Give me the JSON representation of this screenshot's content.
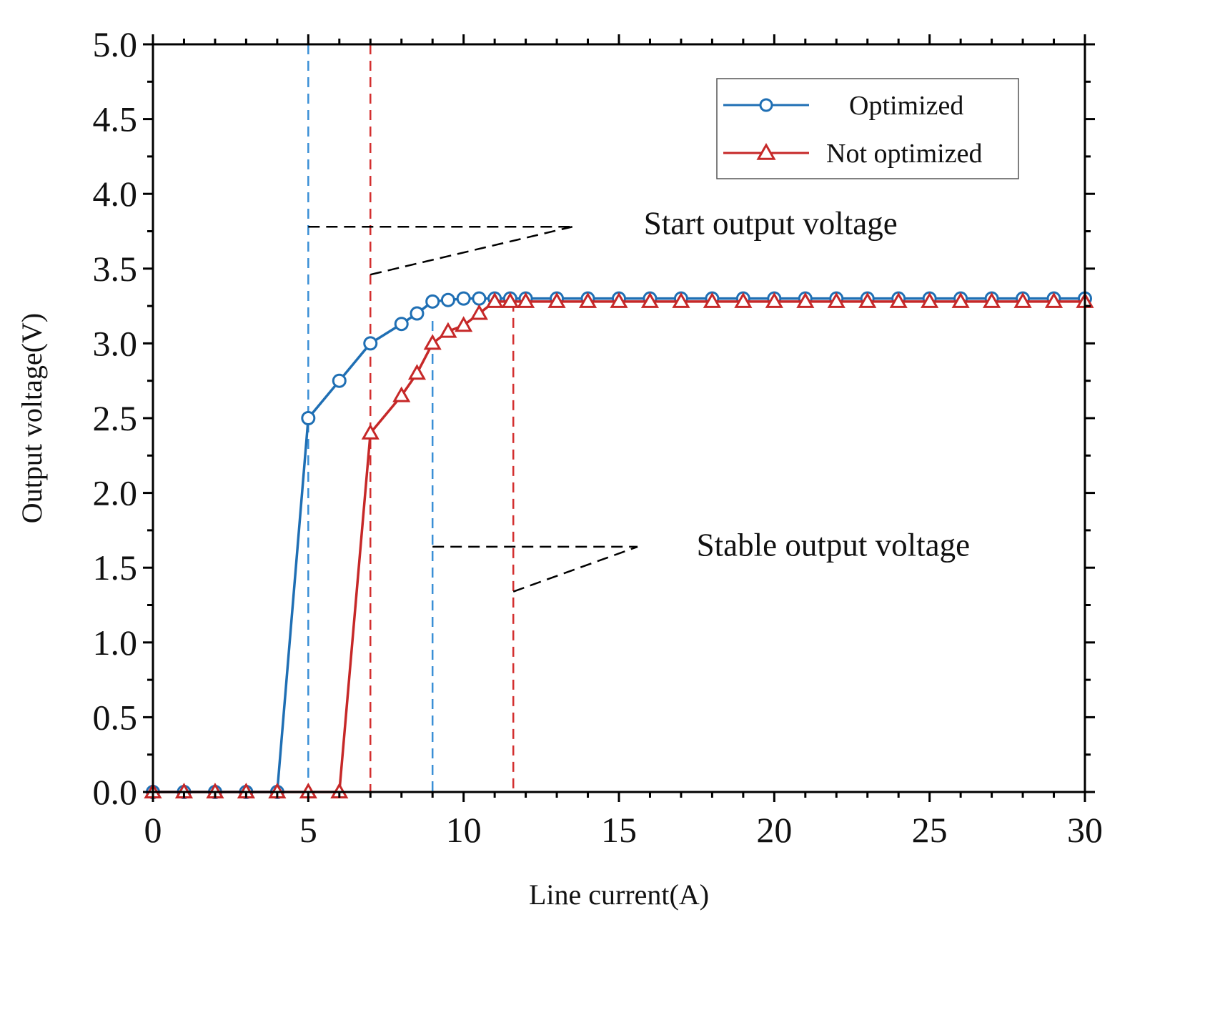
{
  "chart_data": {
    "type": "line",
    "title": "",
    "xlabel": "Line current(A)",
    "ylabel": "Output voltage(V)",
    "xlim": [
      0,
      30
    ],
    "ylim": [
      0,
      5
    ],
    "xticks": [
      0,
      5,
      10,
      15,
      20,
      25,
      30
    ],
    "yticks": [
      0.0,
      0.5,
      1.0,
      1.5,
      2.0,
      2.5,
      3.0,
      3.5,
      4.0,
      4.5,
      5.0
    ],
    "xtick_labels": [
      "0",
      "5",
      "10",
      "15",
      "20",
      "25",
      "30"
    ],
    "ytick_labels": [
      "0.0",
      "0.5",
      "1.0",
      "1.5",
      "2.0",
      "2.5",
      "3.0",
      "3.5",
      "4.0",
      "4.5",
      "5.0"
    ],
    "grid": false,
    "legend": "top-right",
    "series": [
      {
        "name": "Optimized",
        "color": "#1f6fb4",
        "marker": "circle",
        "x": [
          0,
          1,
          2,
          3,
          4,
          5,
          6,
          7,
          8,
          8.5,
          9,
          9.5,
          10,
          10.5,
          11,
          11.5,
          12,
          13,
          14,
          15,
          16,
          17,
          18,
          19,
          20,
          21,
          22,
          23,
          24,
          25,
          26,
          27,
          28,
          29,
          30
        ],
        "y": [
          0,
          0,
          0,
          0,
          0,
          2.5,
          2.75,
          3.0,
          3.13,
          3.2,
          3.28,
          3.29,
          3.3,
          3.3,
          3.3,
          3.3,
          3.3,
          3.3,
          3.3,
          3.3,
          3.3,
          3.3,
          3.3,
          3.3,
          3.3,
          3.3,
          3.3,
          3.3,
          3.3,
          3.3,
          3.3,
          3.3,
          3.3,
          3.3,
          3.3
        ]
      },
      {
        "name": "Not optimized",
        "color": "#c62828",
        "marker": "triangle",
        "x": [
          0,
          1,
          2,
          3,
          4,
          5,
          6,
          7,
          8,
          8.5,
          9,
          9.5,
          10,
          10.5,
          11,
          11.5,
          12,
          13,
          14,
          15,
          16,
          17,
          18,
          19,
          20,
          21,
          22,
          23,
          24,
          25,
          26,
          27,
          28,
          29,
          30
        ],
        "y": [
          0,
          0,
          0,
          0,
          0,
          0,
          0,
          2.4,
          2.65,
          2.8,
          3.0,
          3.08,
          3.12,
          3.2,
          3.28,
          3.28,
          3.28,
          3.28,
          3.28,
          3.28,
          3.28,
          3.28,
          3.28,
          3.28,
          3.28,
          3.28,
          3.28,
          3.28,
          3.28,
          3.28,
          3.28,
          3.28,
          3.28,
          3.28,
          3.28
        ]
      }
    ],
    "reference_lines": [
      {
        "x": 5,
        "color": "#3a8fd6"
      },
      {
        "x": 7,
        "color": "#d32f2f"
      },
      {
        "x": 9,
        "color": "#3a8fd6",
        "ymax": 3.15
      },
      {
        "x": 11.6,
        "color": "#d32f2f",
        "ymax": 3.28
      }
    ],
    "annotations": [
      {
        "text": "Start output voltage",
        "text_x": 15.8,
        "text_y": 3.73,
        "apex": [
          13.5,
          3.78
        ],
        "from": [
          [
            5,
            3.78
          ],
          [
            7,
            3.46
          ]
        ]
      },
      {
        "text": "Stable output voltage",
        "text_x": 17.5,
        "text_y": 1.58,
        "apex": [
          15.6,
          1.64
        ],
        "from": [
          [
            9,
            1.64
          ],
          [
            11.6,
            1.34
          ]
        ]
      }
    ]
  }
}
